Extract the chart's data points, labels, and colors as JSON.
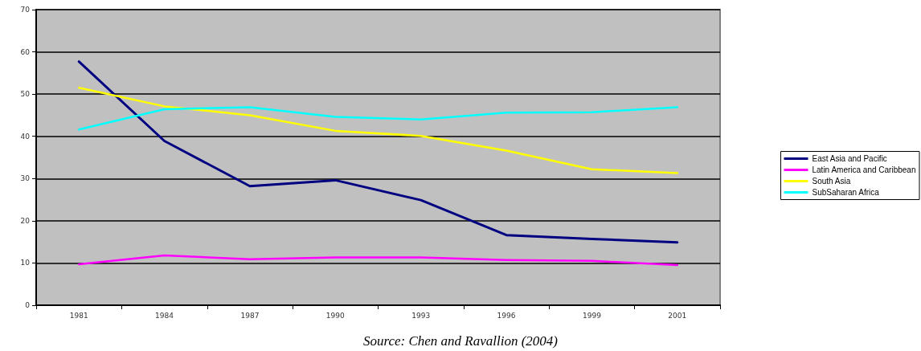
{
  "chart_data": {
    "type": "line",
    "categories": [
      "1981",
      "1984",
      "1987",
      "1990",
      "1993",
      "1996",
      "1999",
      "2001"
    ],
    "series": [
      {
        "name": "East Asia and Pacific",
        "color": "#000080",
        "values": [
          57.7,
          38.9,
          28.2,
          29.6,
          24.9,
          16.6,
          15.7,
          14.9
        ]
      },
      {
        "name": "Latin America and Caribbean",
        "color": "#ff00ff",
        "values": [
          9.7,
          11.8,
          10.9,
          11.3,
          11.3,
          10.7,
          10.5,
          9.5
        ]
      },
      {
        "name": "South Asia",
        "color": "#ffff00",
        "values": [
          51.5,
          47.1,
          45.0,
          41.3,
          40.1,
          36.6,
          32.2,
          31.3
        ]
      },
      {
        "name": "SubSaharan Africa",
        "color": "#00ffff",
        "values": [
          41.6,
          46.4,
          46.9,
          44.6,
          44.0,
          45.6,
          45.7,
          46.9
        ]
      }
    ],
    "ylim": [
      0,
      70
    ],
    "yticks": [
      0,
      10,
      20,
      30,
      40,
      50,
      60,
      70
    ],
    "grid": "y",
    "legend": "right",
    "marker": "none",
    "line_style": "solid",
    "annotations": [
      "Source: Chen and Ravallion (2004)"
    ]
  }
}
